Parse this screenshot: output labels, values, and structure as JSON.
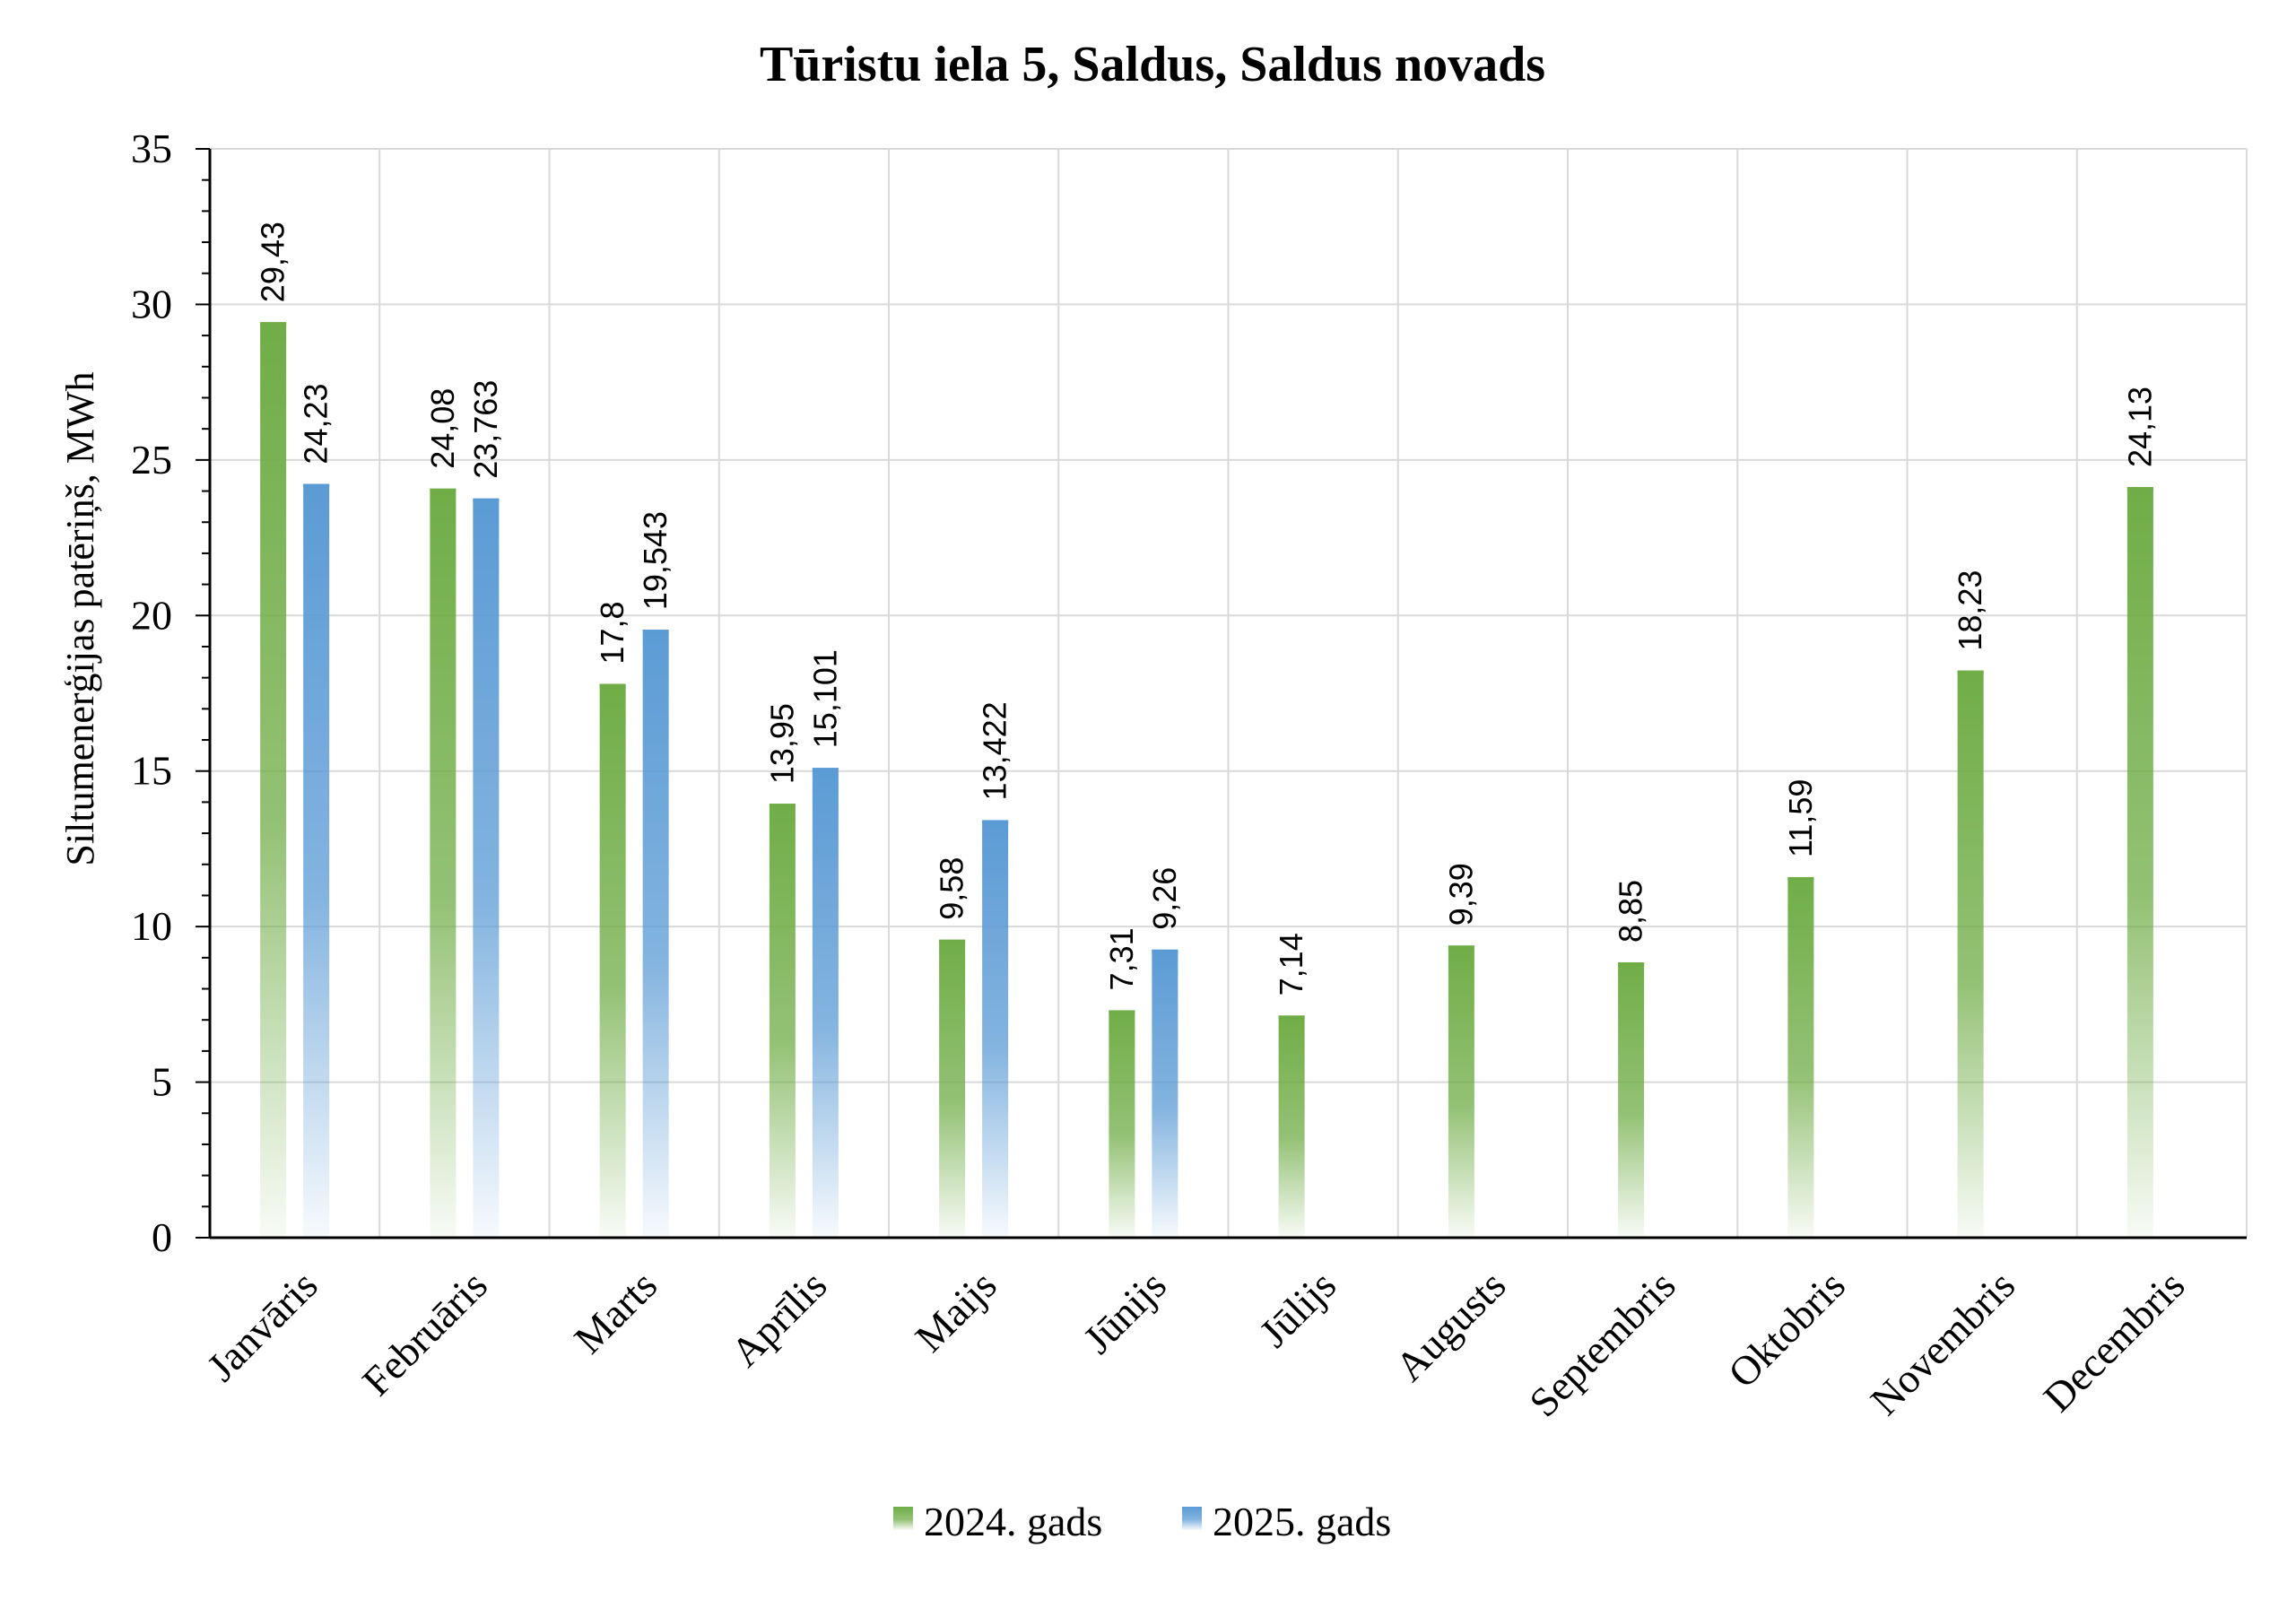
{
  "chart_data": {
    "type": "bar",
    "title": "Tūristu iela 5, Saldus, Saldus novads",
    "xlabel": "",
    "ylabel": "Siltumenerģijas patēriņš, MWh",
    "ylim": [
      0,
      35
    ],
    "yticks": [
      0,
      5,
      10,
      15,
      20,
      25,
      30,
      35
    ],
    "grid": true,
    "legend_position": "bottom",
    "categories": [
      "Janvāris",
      "Februāris",
      "Marts",
      "Aprīlis",
      "Maijs",
      "Jūnijs",
      "Jūlijs",
      "Augusts",
      "Septembris",
      "Oktobris",
      "Novembris",
      "Decembris"
    ],
    "series": [
      {
        "name": "2024. gads",
        "color": "#70ad47",
        "values": [
          29.43,
          24.08,
          17.8,
          13.95,
          9.58,
          7.31,
          7.14,
          9.39,
          8.85,
          11.59,
          18.23,
          24.13
        ],
        "labels": [
          "29,43",
          "24,08",
          "17,8",
          "13,95",
          "9,58",
          "7,31",
          "7,14",
          "9,39",
          "8,85",
          "11,59",
          "18,23",
          "24,13"
        ]
      },
      {
        "name": "2025. gads",
        "color": "#5b9bd5",
        "values": [
          24.23,
          23.763,
          19.543,
          15.101,
          13.422,
          9.26,
          null,
          null,
          null,
          null,
          null,
          null
        ],
        "labels": [
          "24,23",
          "23,763",
          "19,543",
          "15,101",
          "13,422",
          "9,26",
          null,
          null,
          null,
          null,
          null,
          null
        ]
      }
    ]
  }
}
